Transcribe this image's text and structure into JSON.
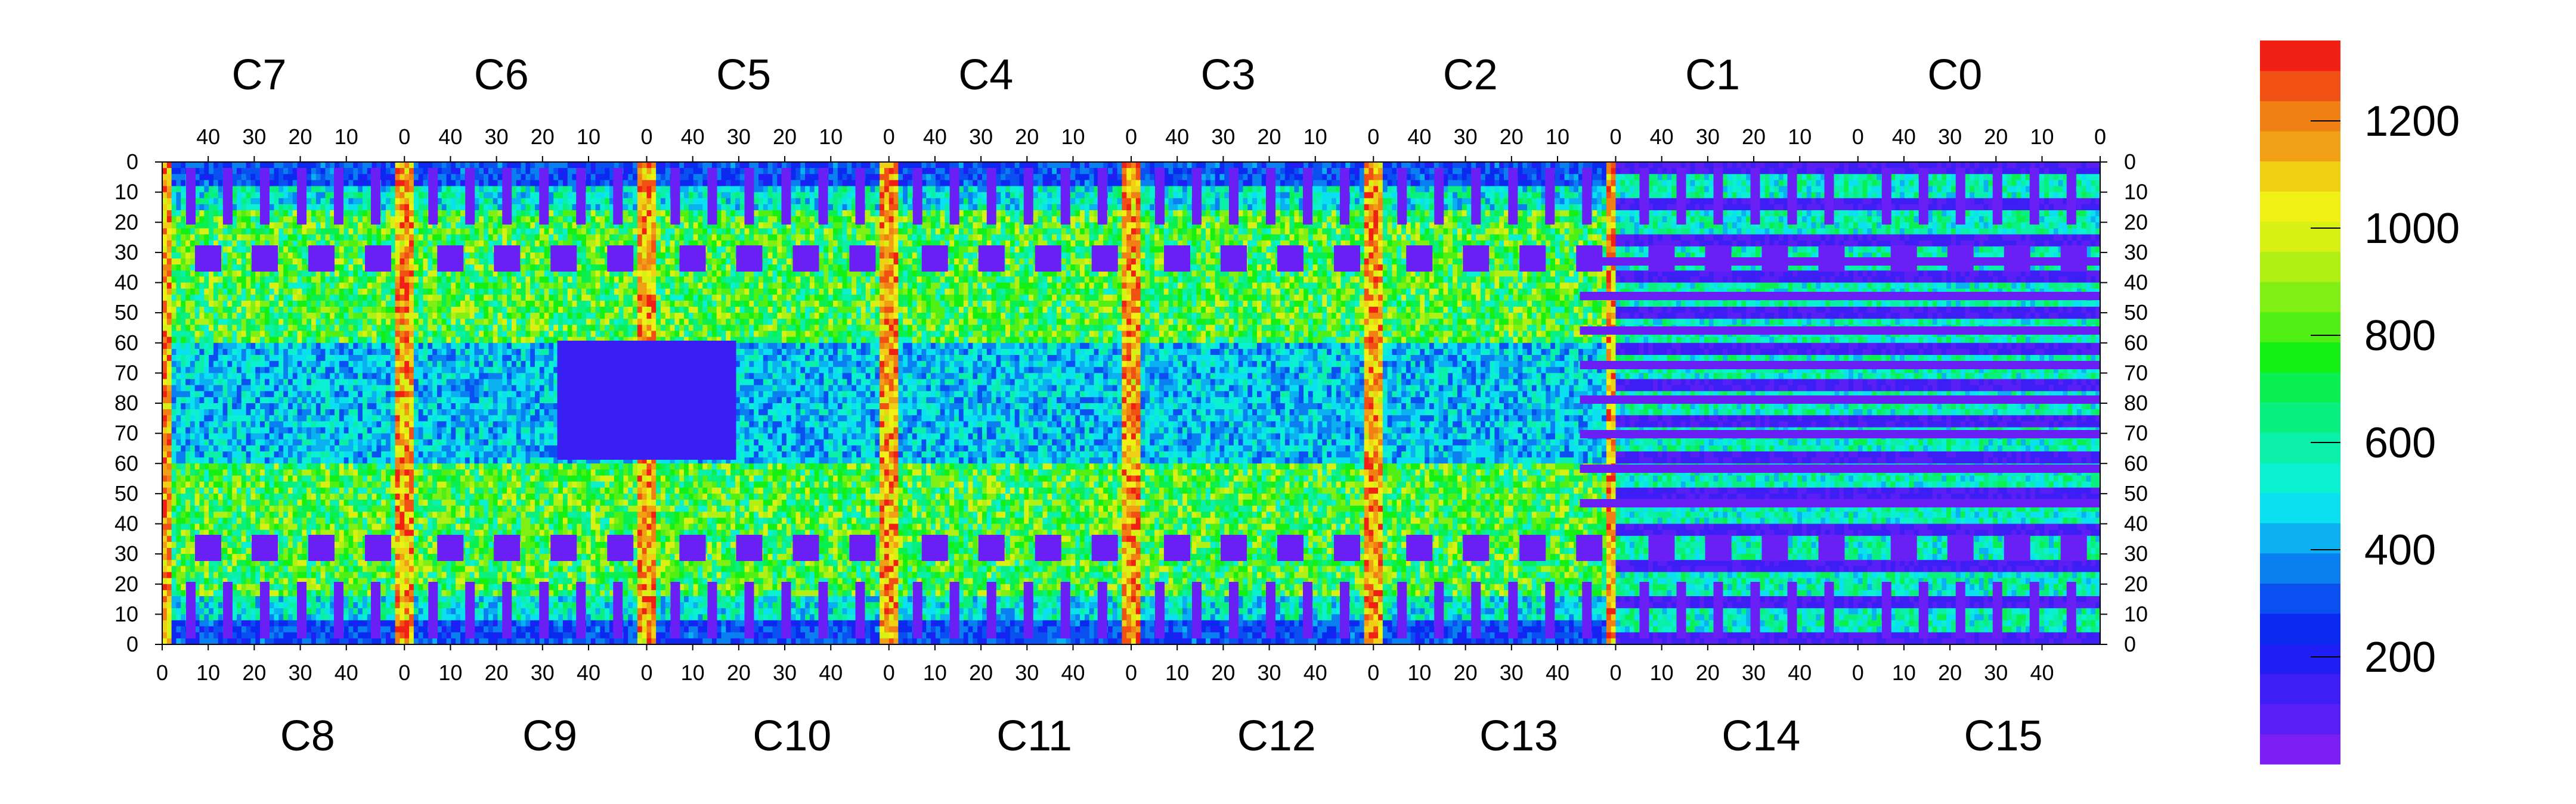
{
  "chart_data": {
    "type": "heatmap",
    "title": "",
    "top_chip_labels": [
      "C7",
      "C6",
      "C5",
      "C4",
      "C3",
      "C2",
      "C1",
      "C0"
    ],
    "bottom_chip_labels": [
      "C8",
      "C9",
      "C10",
      "C11",
      "C12",
      "C13",
      "C14",
      "C15"
    ],
    "top_x_ticks": [
      "40",
      "30",
      "20",
      "10",
      "0"
    ],
    "bottom_x_ticks": [
      "0",
      "10",
      "20",
      "30",
      "40"
    ],
    "y_ticks_left": [
      "0",
      "10",
      "20",
      "30",
      "40",
      "50",
      "60",
      "70",
      "80",
      "70",
      "60",
      "50",
      "40",
      "30",
      "20",
      "10",
      "0"
    ],
    "y_ticks_right": [
      "0",
      "10",
      "20",
      "30",
      "40",
      "50",
      "60",
      "70",
      "80",
      "70",
      "60",
      "50",
      "40",
      "30",
      "20",
      "10",
      "0"
    ],
    "colorbar": {
      "min": 0,
      "max": 1350,
      "ticks": [
        200,
        400,
        600,
        800,
        1000,
        1200
      ],
      "tick_labels": [
        "200",
        "400",
        "600",
        "800",
        "1000",
        "1200"
      ],
      "colors": [
        "#7b1ff5",
        "#5a1ff5",
        "#3d1ff5",
        "#1f1ff5",
        "#0a2af0",
        "#0a50f0",
        "#0a80f0",
        "#0ab0f0",
        "#0ae0f0",
        "#0af0d0",
        "#0af0a8",
        "#0af080",
        "#0af050",
        "#14f014",
        "#50f014",
        "#80f014",
        "#b0f014",
        "#d8f014",
        "#f0f014",
        "#f0d014",
        "#f0a014",
        "#f08014",
        "#f05014",
        "#f02014"
      ]
    },
    "grid": false,
    "legend": "colorbar-right"
  }
}
